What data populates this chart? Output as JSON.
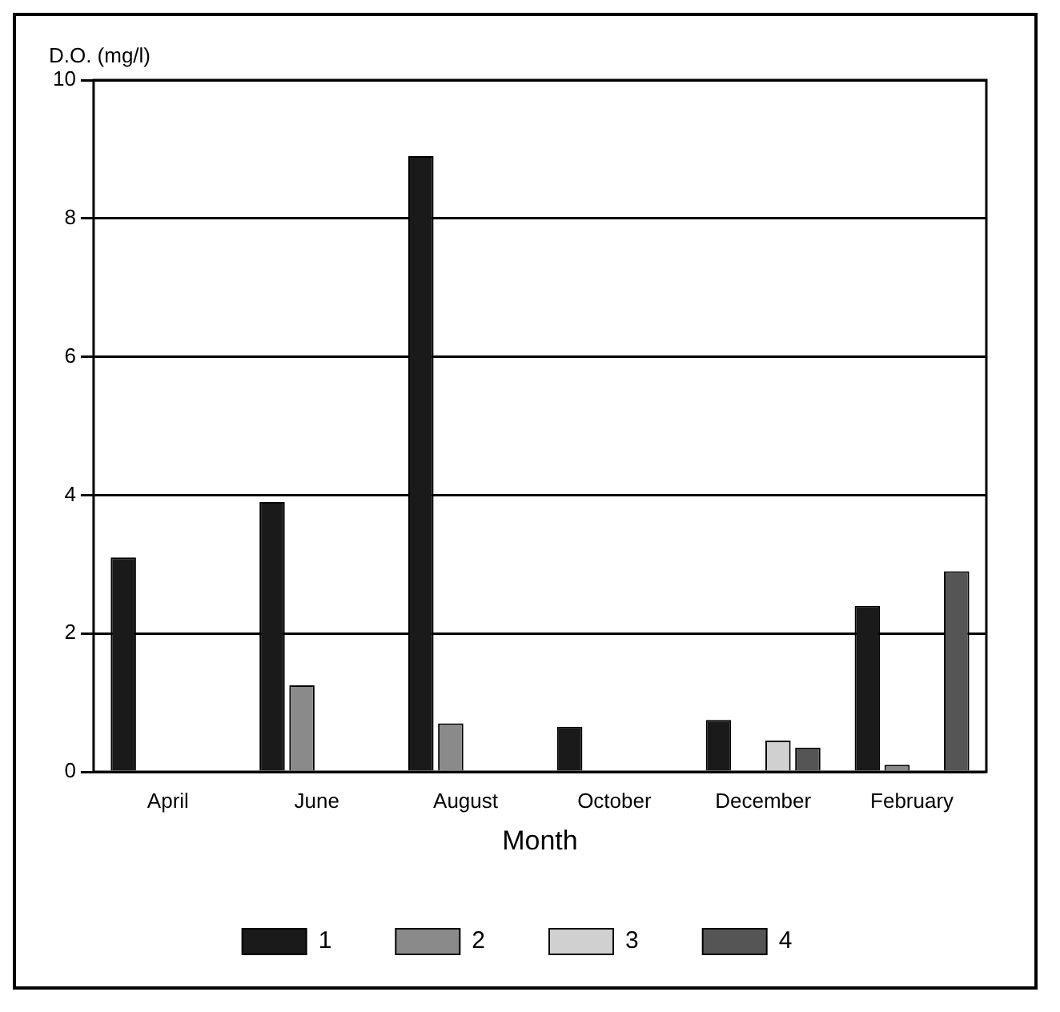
{
  "chart_data": {
    "type": "bar",
    "ylabel": "D.O. (mg/l)",
    "xlabel": "Month",
    "categories": [
      "April",
      "June",
      "August",
      "October",
      "December",
      "February"
    ],
    "series": [
      {
        "name": "1",
        "color": "#1a1a1a",
        "values": [
          3.1,
          3.9,
          8.9,
          0.65,
          0.75,
          2.4
        ]
      },
      {
        "name": "2",
        "color": "#8a8a8a",
        "values": [
          null,
          1.25,
          0.7,
          null,
          null,
          0.1
        ]
      },
      {
        "name": "3",
        "color": "#d0d0d0",
        "values": [
          null,
          null,
          null,
          null,
          0.45,
          null
        ]
      },
      {
        "name": "4",
        "color": "#555555",
        "values": [
          null,
          null,
          null,
          null,
          0.35,
          2.9
        ]
      }
    ],
    "ylim": [
      0,
      10
    ],
    "yticks": [
      0,
      2,
      4,
      6,
      8,
      10
    ],
    "grid": "y",
    "legend": "bottom"
  }
}
